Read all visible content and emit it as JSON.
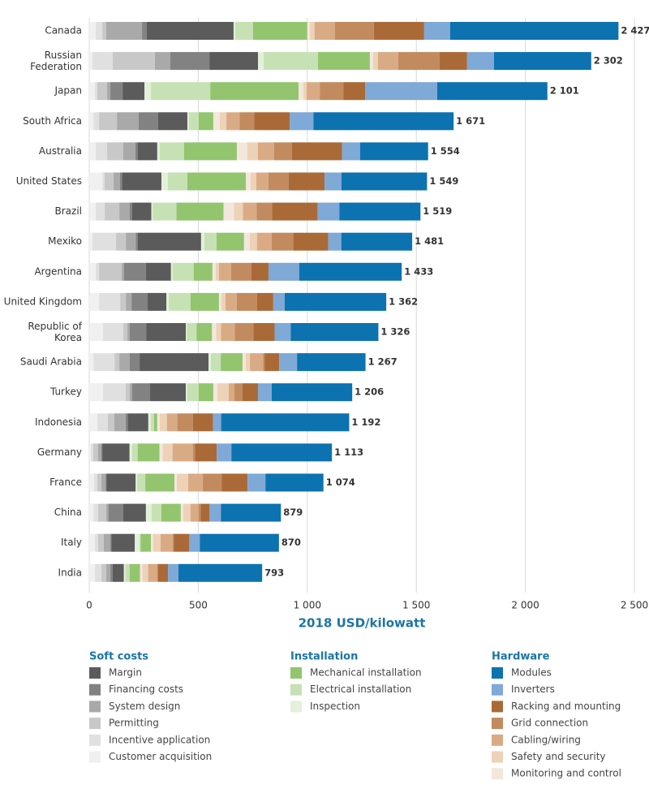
{
  "chart_data": {
    "type": "stacked-bar-horizontal",
    "xlabel": "2018 USD/kilowatt",
    "xlim": [
      0,
      2500
    ],
    "xticks": [
      0,
      500,
      {
        "value": 1000,
        "label": "1 000"
      },
      {
        "value": 1500,
        "label": "1 500"
      },
      {
        "value": 2000,
        "label": "2 000"
      },
      {
        "value": 2500,
        "label": "2 500"
      }
    ],
    "grid": true,
    "categories": [
      "Canada",
      "Russian Federation",
      "Japan",
      "South Africa",
      "Australia",
      "United States",
      "Brazil",
      "Mexiko",
      "Argentina",
      "United Kingdom",
      "Republic of Korea",
      "Saudi Arabia",
      "Turkey",
      "Indonesia",
      "Germany",
      "France",
      "China",
      "Italy",
      "India"
    ],
    "totals": [
      2427,
      2302,
      2101,
      1671,
      1554,
      1549,
      1519,
      1481,
      1433,
      1362,
      1326,
      1267,
      1206,
      1192,
      1113,
      1074,
      879,
      870,
      793
    ],
    "total_labels": [
      "2 427",
      "2 302",
      "2 101",
      "1 671",
      "1 554",
      "1 549",
      "1 519",
      "1 481",
      "1 433",
      "1 362",
      "1 326",
      "1 267",
      "1 206",
      "1 192",
      "1 113",
      "1 074",
      "879",
      "870",
      "793"
    ],
    "groups": [
      "Soft costs",
      "Installation",
      "Hardware"
    ],
    "series": [
      {
        "name": "Customer acquisition",
        "group": 0,
        "color": "#f0f0f0",
        "values": [
          30,
          15,
          26,
          19,
          30,
          60,
          30,
          15,
          30,
          45,
          63,
          19,
          63,
          37,
          7,
          22,
          19,
          26,
          26
        ]
      },
      {
        "name": "Incentive application",
        "group": 0,
        "color": "#e0e0e0",
        "values": [
          30,
          93,
          11,
          26,
          52,
          10,
          41,
          108,
          15,
          97,
          93,
          97,
          104,
          48,
          11,
          15,
          22,
          15,
          30
        ]
      },
      {
        "name": "Permitting",
        "group": 0,
        "color": "#c8c8c8",
        "values": [
          18,
          193,
          45,
          82,
          74,
          41,
          67,
          45,
          104,
          26,
          19,
          22,
          19,
          30,
          22,
          19,
          37,
          26,
          22
        ]
      },
      {
        "name": "System design",
        "group": 0,
        "color": "#a9a9a9",
        "values": [
          164,
          71,
          15,
          100,
          56,
          30,
          48,
          45,
          11,
          26,
          10,
          48,
          10,
          52,
          15,
          19,
          10,
          30,
          19
        ]
      },
      {
        "name": "Financing costs",
        "group": 0,
        "color": "#828282",
        "values": [
          22,
          179,
          56,
          89,
          10,
          10,
          10,
          10,
          100,
          74,
          76,
          45,
          83,
          10,
          5,
          5,
          68,
          5,
          10
        ]
      },
      {
        "name": "Margin",
        "group": 0,
        "color": "#5b5b5b",
        "values": [
          398,
          223,
          100,
          134,
          90,
          180,
          89,
          290,
          115,
          86,
          182,
          316,
          164,
          94,
          125,
          133,
          104,
          107,
          52
        ]
      },
      {
        "name": "Inspection",
        "group": 1,
        "color": "#e3f0da",
        "values": [
          7,
          26,
          30,
          7,
          11,
          30,
          7,
          15,
          7,
          11,
          4,
          11,
          7,
          11,
          11,
          7,
          26,
          22,
          7
        ]
      },
      {
        "name": "Electrical installation",
        "group": 1,
        "color": "#c6e1b4",
        "values": [
          82,
          249,
          272,
          45,
          112,
          89,
          108,
          56,
          97,
          100,
          45,
          45,
          52,
          15,
          26,
          37,
          45,
          5,
          19
        ]
      },
      {
        "name": "Mechanical installation",
        "group": 1,
        "color": "#93c56f",
        "values": [
          249,
          238,
          405,
          67,
          242,
          268,
          216,
          126,
          86,
          130,
          71,
          100,
          67,
          15,
          100,
          134,
          89,
          47,
          48
        ]
      },
      {
        "name": "Monitoring and control",
        "group": 2,
        "color": "#f3e7dc",
        "values": [
          11,
          15,
          22,
          30,
          48,
          22,
          48,
          26,
          15,
          11,
          19,
          15,
          19,
          11,
          15,
          11,
          11,
          11,
          11
        ]
      },
      {
        "name": "Safety and security",
        "group": 2,
        "color": "#edd2b8",
        "values": [
          22,
          22,
          15,
          30,
          48,
          26,
          41,
          33,
          15,
          19,
          22,
          19,
          52,
          33,
          45,
          52,
          33,
          33,
          26
        ]
      },
      {
        "name": "Cabling/wiring",
        "group": 2,
        "color": "#d9ab85",
        "values": [
          93,
          93,
          60,
          60,
          74,
          56,
          63,
          67,
          56,
          52,
          63,
          60,
          26,
          48,
          93,
          67,
          37,
          56,
          41
        ]
      },
      {
        "name": "Grid connection",
        "group": 2,
        "color": "#c28b5f",
        "values": [
          179,
          190,
          108,
          67,
          82,
          93,
          71,
          100,
          93,
          93,
          86,
          7,
          37,
          71,
          10,
          86,
          10,
          5,
          5
        ]
      },
      {
        "name": "Racking and mounting",
        "group": 2,
        "color": "#aa6a37",
        "values": [
          231,
          126,
          100,
          164,
          231,
          164,
          208,
          160,
          78,
          74,
          97,
          67,
          71,
          93,
          100,
          119,
          41,
          71,
          45
        ]
      },
      {
        "name": "Inverters",
        "group": 2,
        "color": "#7fa9d6",
        "values": [
          119,
          123,
          331,
          108,
          82,
          78,
          100,
          60,
          141,
          52,
          74,
          82,
          63,
          37,
          67,
          82,
          52,
          48,
          48
        ]
      },
      {
        "name": "Modules",
        "group": 2,
        "color": "#0c72b0",
        "values": [
          772,
          446,
          505,
          643,
          312,
          392,
          372,
          325,
          470,
          466,
          402,
          314,
          369,
          587,
          461,
          266,
          275,
          363,
          384
        ]
      }
    ]
  }
}
